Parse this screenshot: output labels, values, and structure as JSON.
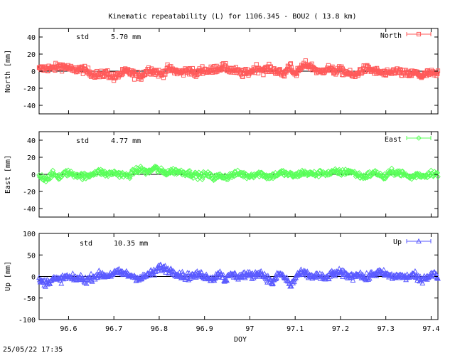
{
  "title": "Kinematic repeatability (L) for 1106.345 - BOU2  ( 13.8 km)",
  "footer_timestamp": "25/05/22 17:35",
  "chart_data": {
    "type": "scatter",
    "x": {
      "label": "DOY",
      "range": [
        96.535,
        97.415
      ],
      "ticks": [
        96.6,
        96.7,
        96.8,
        96.9,
        97,
        97.1,
        97.2,
        97.3,
        97.4
      ],
      "tick_labels": [
        "96.6",
        "96.7",
        "96.8",
        "96.9",
        "97",
        "97.1",
        "97.2",
        "97.3",
        "97.4"
      ]
    },
    "panels": [
      {
        "name": "north",
        "ylabel": "North [mm]",
        "legend": "North",
        "std_label": "std",
        "std_value": "5.70 mm",
        "color": "#ff5a5a",
        "marker": "square",
        "ylim": [
          -50,
          50
        ],
        "yticks": [
          -40,
          -20,
          0,
          20,
          40
        ],
        "ytick_labels": [
          "-40",
          "-20",
          "0",
          "20",
          "40"
        ],
        "noise_mm": 5.7,
        "series": [
          [
            96.535,
            2
          ],
          [
            96.55,
            4
          ],
          [
            96.565,
            3
          ],
          [
            96.58,
            6
          ],
          [
            96.595,
            5
          ],
          [
            96.61,
            1
          ],
          [
            96.625,
            3
          ],
          [
            96.64,
            0
          ],
          [
            96.655,
            -3
          ],
          [
            96.67,
            -5
          ],
          [
            96.685,
            -2
          ],
          [
            96.7,
            -8
          ],
          [
            96.715,
            -3
          ],
          [
            96.73,
            0
          ],
          [
            96.745,
            -4
          ],
          [
            96.76,
            -6
          ],
          [
            96.775,
            2
          ],
          [
            96.79,
            0
          ],
          [
            96.805,
            -4
          ],
          [
            96.82,
            3
          ],
          [
            96.835,
            0
          ],
          [
            96.85,
            -2
          ],
          [
            96.865,
            2
          ],
          [
            96.88,
            -4
          ],
          [
            96.895,
            2
          ],
          [
            96.91,
            0
          ],
          [
            96.925,
            3
          ],
          [
            96.94,
            5
          ],
          [
            96.955,
            2
          ],
          [
            96.97,
            0
          ],
          [
            96.985,
            -3
          ],
          [
            97.0,
            -1
          ],
          [
            97.015,
            4
          ],
          [
            97.03,
            1
          ],
          [
            97.045,
            3
          ],
          [
            97.06,
            0
          ],
          [
            97.075,
            -4
          ],
          [
            97.09,
            8
          ],
          [
            97.1,
            -6
          ],
          [
            97.11,
            3
          ],
          [
            97.125,
            8
          ],
          [
            97.14,
            4
          ],
          [
            97.155,
            -2
          ],
          [
            97.17,
            4
          ],
          [
            97.185,
            0
          ],
          [
            97.2,
            1
          ],
          [
            97.215,
            -2
          ],
          [
            97.23,
            -6
          ],
          [
            97.245,
            1
          ],
          [
            97.26,
            3
          ],
          [
            97.275,
            0
          ],
          [
            97.29,
            -2
          ],
          [
            97.305,
            -4
          ],
          [
            97.32,
            1
          ],
          [
            97.335,
            -2
          ],
          [
            97.35,
            -4
          ],
          [
            97.365,
            -2
          ],
          [
            97.38,
            -6
          ],
          [
            97.395,
            -2
          ],
          [
            97.41,
            -4
          ],
          [
            97.415,
            -3
          ]
        ]
      },
      {
        "name": "east",
        "ylabel": "East [mm]",
        "legend": "East",
        "std_label": "std",
        "std_value": "4.77 mm",
        "color": "#5aff5a",
        "marker": "diamond",
        "ylim": [
          -50,
          50
        ],
        "yticks": [
          -40,
          -20,
          0,
          20,
          40
        ],
        "ytick_labels": [
          "-40",
          "-20",
          "0",
          "20",
          "40"
        ],
        "noise_mm": 4.77,
        "series": [
          [
            96.535,
            -2
          ],
          [
            96.55,
            -5
          ],
          [
            96.565,
            0
          ],
          [
            96.58,
            -3
          ],
          [
            96.595,
            2
          ],
          [
            96.61,
            0
          ],
          [
            96.625,
            -1
          ],
          [
            96.64,
            -3
          ],
          [
            96.655,
            2
          ],
          [
            96.67,
            3
          ],
          [
            96.685,
            0
          ],
          [
            96.7,
            2
          ],
          [
            96.715,
            0
          ],
          [
            96.73,
            -2
          ],
          [
            96.745,
            3
          ],
          [
            96.76,
            6
          ],
          [
            96.775,
            2
          ],
          [
            96.79,
            8
          ],
          [
            96.8,
            4
          ],
          [
            96.815,
            2
          ],
          [
            96.83,
            4
          ],
          [
            96.845,
            3
          ],
          [
            96.86,
            2
          ],
          [
            96.875,
            0
          ],
          [
            96.89,
            -2
          ],
          [
            96.905,
            0
          ],
          [
            96.92,
            -4
          ],
          [
            96.935,
            -2
          ],
          [
            96.95,
            -3
          ],
          [
            96.965,
            0
          ],
          [
            96.98,
            1
          ],
          [
            96.995,
            -2
          ],
          [
            97.01,
            0
          ],
          [
            97.025,
            1
          ],
          [
            97.04,
            -3
          ],
          [
            97.055,
            -1
          ],
          [
            97.07,
            2
          ],
          [
            97.085,
            0
          ],
          [
            97.1,
            -2
          ],
          [
            97.115,
            2
          ],
          [
            97.13,
            1
          ],
          [
            97.145,
            0
          ],
          [
            97.16,
            2
          ],
          [
            97.175,
            1
          ],
          [
            97.19,
            3
          ],
          [
            97.205,
            2
          ],
          [
            97.22,
            4
          ],
          [
            97.235,
            0
          ],
          [
            97.25,
            -3
          ],
          [
            97.265,
            0
          ],
          [
            97.28,
            2
          ],
          [
            97.295,
            -4
          ],
          [
            97.31,
            2
          ],
          [
            97.325,
            3
          ],
          [
            97.34,
            0
          ],
          [
            97.355,
            -4
          ],
          [
            97.37,
            0
          ],
          [
            97.385,
            -2
          ],
          [
            97.4,
            2
          ],
          [
            97.415,
            0
          ]
        ]
      },
      {
        "name": "up",
        "ylabel": "Up [mm]",
        "legend": "Up",
        "std_label": "std",
        "std_value": "10.35 mm",
        "color": "#5a5aff",
        "marker": "triangle",
        "ylim": [
          -100,
          100
        ],
        "yticks": [
          -100,
          -50,
          0,
          50,
          100
        ],
        "ytick_labels": [
          "-100",
          "-50",
          "0",
          "50",
          "100"
        ],
        "noise_mm": 10.35,
        "series": [
          [
            96.535,
            -10
          ],
          [
            96.55,
            -15
          ],
          [
            96.565,
            -5
          ],
          [
            96.58,
            -8
          ],
          [
            96.595,
            0
          ],
          [
            96.61,
            -5
          ],
          [
            96.625,
            -3
          ],
          [
            96.64,
            -8
          ],
          [
            96.655,
            0
          ],
          [
            96.67,
            5
          ],
          [
            96.685,
            2
          ],
          [
            96.7,
            8
          ],
          [
            96.715,
            10
          ],
          [
            96.73,
            5
          ],
          [
            96.745,
            0
          ],
          [
            96.76,
            -5
          ],
          [
            96.775,
            5
          ],
          [
            96.79,
            10
          ],
          [
            96.8,
            22
          ],
          [
            96.815,
            18
          ],
          [
            96.83,
            12
          ],
          [
            96.845,
            5
          ],
          [
            96.86,
            0
          ],
          [
            96.875,
            2
          ],
          [
            96.89,
            5
          ],
          [
            96.905,
            0
          ],
          [
            96.92,
            -5
          ],
          [
            96.935,
            10
          ],
          [
            96.945,
            -8
          ],
          [
            96.96,
            5
          ],
          [
            96.975,
            0
          ],
          [
            96.99,
            5
          ],
          [
            97.005,
            2
          ],
          [
            97.02,
            10
          ],
          [
            97.035,
            0
          ],
          [
            97.05,
            -15
          ],
          [
            97.065,
            8
          ],
          [
            97.08,
            -5
          ],
          [
            97.09,
            -22
          ],
          [
            97.105,
            5
          ],
          [
            97.12,
            8
          ],
          [
            97.135,
            0
          ],
          [
            97.15,
            3
          ],
          [
            97.165,
            -5
          ],
          [
            97.18,
            5
          ],
          [
            97.195,
            10
          ],
          [
            97.21,
            5
          ],
          [
            97.225,
            0
          ],
          [
            97.24,
            8
          ],
          [
            97.255,
            -5
          ],
          [
            97.27,
            5
          ],
          [
            97.285,
            10
          ],
          [
            97.3,
            5
          ],
          [
            97.315,
            0
          ],
          [
            97.33,
            2
          ],
          [
            97.345,
            -2
          ],
          [
            97.36,
            5
          ],
          [
            97.375,
            -8
          ],
          [
            97.39,
            0
          ],
          [
            97.405,
            5
          ],
          [
            97.415,
            0
          ]
        ]
      }
    ]
  }
}
